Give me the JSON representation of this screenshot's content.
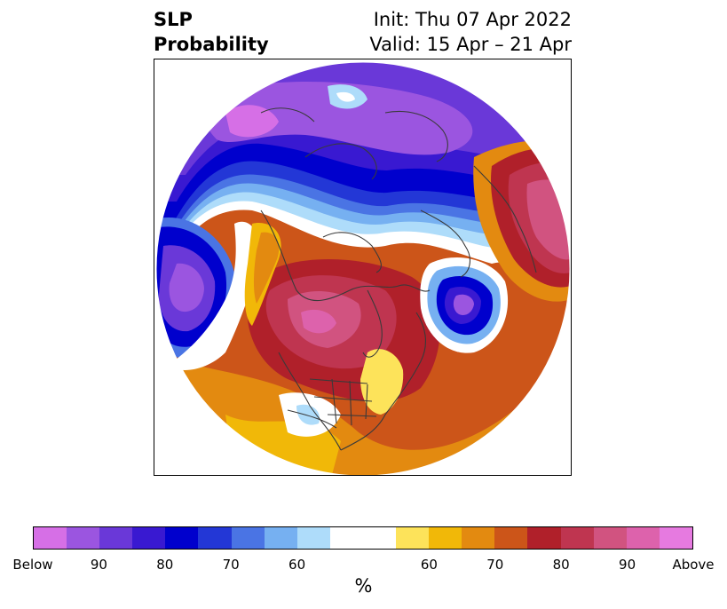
{
  "title": {
    "left_line1": "SLP",
    "left_line2": "Probability",
    "right_line1": "Init: Thu 07 Apr 2022",
    "right_line2": "Valid: 15 Apr – 21 Apr"
  },
  "colorbar": {
    "label": "%",
    "below_colors": [
      "#d66fe6",
      "#9b55e0",
      "#6a38d8",
      "#3919d1",
      "#0000cd",
      "#2337d6",
      "#4a74e4",
      "#76b0f1",
      "#aedcfa"
    ],
    "neutral_color": "#ffffff",
    "above_colors": [
      "#fde35a",
      "#f1b808",
      "#e38a10",
      "#cc5519",
      "#b0202a",
      "#bf3550",
      "#d15380",
      "#dd62ac",
      "#e67ae0"
    ],
    "tick_labels": [
      "Below",
      "90",
      "80",
      "70",
      "60",
      "60",
      "70",
      "80",
      "90",
      "Above"
    ]
  }
}
